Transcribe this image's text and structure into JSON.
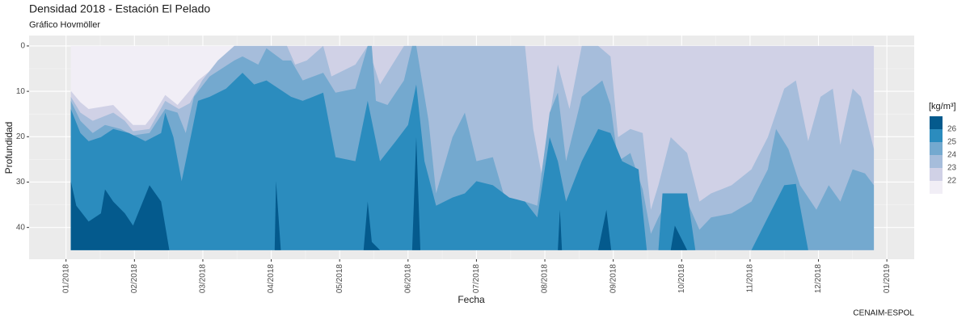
{
  "chart_data": {
    "type": "contour",
    "title": "Densidad 2018 - Estación El Pelado",
    "subtitle": "Gráfico Hovmöller",
    "x_label": "Fecha",
    "y_label": "Profundidad",
    "caption": "CENAIM-ESPOL",
    "legend_title": "[kg/m³]",
    "legend_position": "right",
    "y_reverse": true,
    "grid": true,
    "low_color": "#f1eef6",
    "xlim": [
      -0.54,
      12.4
    ],
    "ylim": [
      -2.3,
      47
    ],
    "xticks": [
      {
        "value": 0,
        "label": "01/2018"
      },
      {
        "value": 1,
        "label": "02/2018"
      },
      {
        "value": 2,
        "label": "03/2018"
      },
      {
        "value": 3,
        "label": "04/2018"
      },
      {
        "value": 4,
        "label": "05/2018"
      },
      {
        "value": 5,
        "label": "06/2018"
      },
      {
        "value": 6,
        "label": "07/2018"
      },
      {
        "value": 7,
        "label": "08/2018"
      },
      {
        "value": 8,
        "label": "09/2018"
      },
      {
        "value": 9,
        "label": "10/2018"
      },
      {
        "value": 10,
        "label": "11/2018"
      },
      {
        "value": 11,
        "label": "12/2018"
      },
      {
        "value": 12,
        "label": "01/2019"
      }
    ],
    "yticks": [
      0,
      10,
      20,
      30,
      40
    ],
    "series": [
      {
        "name": "22",
        "color": "#d0d1e6",
        "x": [
          0.07,
          0.21,
          0.33,
          0.69,
          0.8,
          0.98,
          1.16,
          1.28,
          1.45,
          1.63,
          1.81,
          1.93,
          2.22,
          2.46,
          11.81
        ],
        "values": [
          9.9,
          12.4,
          13.9,
          13.0,
          14.7,
          17.4,
          17.4,
          15.1,
          10.8,
          13.0,
          9.8,
          7.6,
          4.1,
          0,
          0
        ]
      },
      {
        "name": "23",
        "color": "#a6bddb",
        "x": [
          0.07,
          0.21,
          0.39,
          0.69,
          0.86,
          0.98,
          1.22,
          1.45,
          1.65,
          1.81,
          1.99,
          2.22,
          2.46,
          3.23,
          3.35,
          3.52,
          3.76,
          3.88,
          4.23,
          4.41,
          4.59,
          4.94,
          6.71,
          6.83,
          6.95,
          7.07,
          7.19,
          7.36,
          7.54,
          7.78,
          7.96,
          8.07,
          8.25,
          8.43,
          8.55,
          8.66,
          8.84,
          9.08,
          9.26,
          9.43,
          9.73,
          10.02,
          10.26,
          10.5,
          10.67,
          10.85,
          11.03,
          11.21,
          11.32,
          11.5,
          11.62,
          11.81
        ],
        "values": [
          11.2,
          14.7,
          16.5,
          14.7,
          16.5,
          18.8,
          18.3,
          12.1,
          13.9,
          12.6,
          7.6,
          3.2,
          0,
          0,
          4.1,
          3.2,
          0,
          6.7,
          4.1,
          0,
          8.5,
          0,
          0,
          18.3,
          28.1,
          15.6,
          4.1,
          13.9,
          0,
          0,
          2.3,
          20.1,
          18.3,
          19.2,
          36.1,
          30.7,
          20.1,
          23.6,
          34.3,
          32.5,
          30.7,
          27.2,
          20.1,
          9.4,
          7.6,
          21.0,
          11.2,
          9.4,
          21.8,
          9.4,
          11.2,
          22.7
        ]
      },
      {
        "name": "24",
        "color": "#74a9cf",
        "x": [
          0.07,
          0.21,
          0.39,
          0.57,
          0.8,
          0.98,
          1.22,
          1.45,
          1.63,
          1.75,
          1.87,
          2.1,
          2.46,
          2.58,
          2.81,
          2.93,
          3.17,
          3.29,
          3.46,
          3.76,
          3.94,
          4.23,
          4.41,
          4.47,
          4.53,
          4.7,
          4.94,
          5.06,
          5.12,
          5.3,
          5.41,
          5.65,
          5.83,
          6.0,
          6.24,
          6.48,
          6.71,
          6.89,
          7.07,
          7.19,
          7.31,
          7.54,
          7.84,
          7.96,
          8.07,
          8.25,
          8.43,
          8.55,
          8.66,
          8.84,
          9.08,
          9.26,
          9.43,
          9.73,
          10.02,
          10.26,
          10.38,
          10.56,
          10.73,
          10.97,
          11.15,
          11.32,
          11.5,
          11.68,
          11.81
        ],
        "values": [
          12.1,
          16.5,
          19.2,
          17.4,
          18.3,
          19.7,
          19.2,
          13.9,
          14.7,
          19.2,
          11.2,
          6.7,
          3.2,
          2.3,
          4.1,
          0.5,
          3.2,
          3.2,
          7.6,
          5.9,
          10.3,
          9.4,
          0,
          0,
          12.1,
          13.0,
          7.6,
          0,
          0,
          16.5,
          32.5,
          20.1,
          14.7,
          25.4,
          24.5,
          36.9,
          34.3,
          35.2,
          14.7,
          10.3,
          25.4,
          11.2,
          7.6,
          13.0,
          25.4,
          23.6,
          31.6,
          41.4,
          37.8,
          32.5,
          34.3,
          40.5,
          37.8,
          36.9,
          34.3,
          27.2,
          18.3,
          22.7,
          30.7,
          36.1,
          30.7,
          34.3,
          27.2,
          28.1,
          30.7
        ]
      },
      {
        "name": "25",
        "color": "#2b8cbe",
        "x": [
          0.07,
          0.21,
          0.33,
          0.51,
          0.69,
          0.92,
          1.16,
          1.39,
          1.45,
          1.57,
          1.69,
          1.81,
          1.93,
          2.1,
          2.34,
          2.58,
          2.75,
          2.93,
          3.11,
          3.29,
          3.46,
          3.76,
          3.94,
          4.23,
          4.41,
          4.59,
          4.82,
          5.0,
          5.12,
          5.24,
          5.41,
          5.65,
          5.83,
          6.0,
          6.24,
          6.48,
          6.71,
          6.89,
          7.07,
          7.19,
          7.31,
          7.54,
          7.78,
          7.96,
          8.13,
          8.37,
          8.49,
          8.66,
          8.72,
          9.08,
          9.2,
          10.02,
          10.26,
          10.5,
          10.67,
          10.85,
          11.81
        ],
        "values": [
          13.9,
          19.2,
          21.0,
          20.1,
          18.3,
          19.2,
          21.0,
          19.2,
          14.7,
          20.1,
          29.8,
          21.0,
          12.1,
          11.2,
          9.4,
          5.9,
          8.5,
          7.6,
          9.4,
          11.2,
          12.1,
          10.3,
          24.5,
          25.4,
          12.1,
          25.4,
          21.0,
          17.4,
          8.5,
          25.4,
          35.2,
          33.4,
          32.5,
          29.8,
          30.7,
          33.4,
          34.3,
          37.8,
          20.1,
          25.4,
          34.3,
          25.4,
          18.3,
          19.2,
          25.4,
          27.2,
          45,
          45,
          32.5,
          32.5,
          45,
          45,
          37.8,
          30.7,
          30.4,
          45,
          45
        ]
      },
      {
        "name": "26",
        "color": "#045a8d",
        "x": [
          0.07,
          0.15,
          0.33,
          0.51,
          0.57,
          0.69,
          0.86,
          0.98,
          1.22,
          1.39,
          1.51,
          3.05,
          3.07,
          3.14,
          4.35,
          4.41,
          4.47,
          4.59,
          5.06,
          5.12,
          5.18,
          7.19,
          7.22,
          7.25,
          7.78,
          7.9,
          7.97,
          8.84,
          8.9,
          9.08,
          11.81
        ],
        "values": [
          29.8,
          35.2,
          38.7,
          36.9,
          31.6,
          34.3,
          36.9,
          39.6,
          30.7,
          34.3,
          45,
          45,
          29.8,
          45,
          45,
          34.3,
          43.2,
          45,
          45,
          20.1,
          45,
          45,
          36.1,
          45,
          45,
          36.1,
          45,
          45,
          39.6,
          45,
          45
        ]
      }
    ]
  }
}
